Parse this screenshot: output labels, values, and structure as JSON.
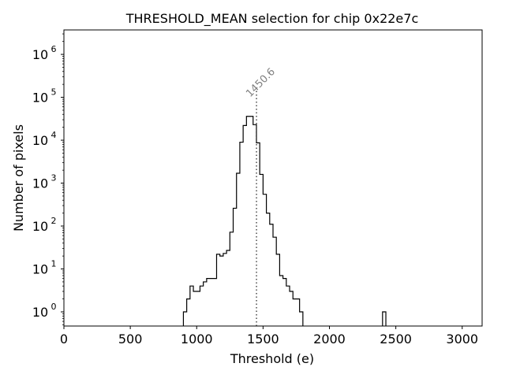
{
  "chart_data": {
    "type": "histogram",
    "title": "THRESHOLD_MEAN selection for chip 0x22e7c",
    "xlabel": "Threshold (e)",
    "ylabel": "Number of pixels",
    "xlim": [
      0,
      3150
    ],
    "ylim_log10": [
      -0.33,
      6.57
    ],
    "x_ticks": [
      0,
      500,
      1000,
      1500,
      2000,
      2500,
      3000
    ],
    "x_tick_labels": [
      "0",
      "500",
      "1000",
      "1500",
      "2000",
      "2500",
      "3000"
    ],
    "y_ticks_log10": [
      0,
      1,
      2,
      3,
      4,
      5,
      6
    ],
    "y_tick_labels": [
      "10",
      "10",
      "10",
      "10",
      "10",
      "10",
      "10"
    ],
    "y_tick_exponents": [
      "0",
      "1",
      "2",
      "3",
      "4",
      "5",
      "6"
    ],
    "bin_width": 25,
    "bins": [
      {
        "x": 900,
        "count": 1
      },
      {
        "x": 925,
        "count": 2
      },
      {
        "x": 950,
        "count": 4
      },
      {
        "x": 975,
        "count": 3
      },
      {
        "x": 1000,
        "count": 3
      },
      {
        "x": 1025,
        "count": 4
      },
      {
        "x": 1050,
        "count": 5
      },
      {
        "x": 1075,
        "count": 6
      },
      {
        "x": 1100,
        "count": 6
      },
      {
        "x": 1125,
        "count": 6
      },
      {
        "x": 1150,
        "count": 22
      },
      {
        "x": 1175,
        "count": 20
      },
      {
        "x": 1200,
        "count": 23
      },
      {
        "x": 1225,
        "count": 27
      },
      {
        "x": 1250,
        "count": 72
      },
      {
        "x": 1275,
        "count": 260
      },
      {
        "x": 1300,
        "count": 1700
      },
      {
        "x": 1325,
        "count": 9000
      },
      {
        "x": 1350,
        "count": 22000
      },
      {
        "x": 1375,
        "count": 36000
      },
      {
        "x": 1400,
        "count": 36000
      },
      {
        "x": 1425,
        "count": 23000
      },
      {
        "x": 1450,
        "count": 8700
      },
      {
        "x": 1475,
        "count": 1600
      },
      {
        "x": 1500,
        "count": 550
      },
      {
        "x": 1525,
        "count": 200
      },
      {
        "x": 1550,
        "count": 110
      },
      {
        "x": 1575,
        "count": 55
      },
      {
        "x": 1600,
        "count": 22
      },
      {
        "x": 1625,
        "count": 7
      },
      {
        "x": 1650,
        "count": 6
      },
      {
        "x": 1675,
        "count": 4
      },
      {
        "x": 1700,
        "count": 3
      },
      {
        "x": 1725,
        "count": 2
      },
      {
        "x": 1750,
        "count": 2
      },
      {
        "x": 1775,
        "count": 1
      },
      {
        "x": 2400,
        "count": 1
      }
    ],
    "hist_range": [
      900,
      1925
    ],
    "marker": {
      "x": 1450.6,
      "label": "1450.6",
      "line_top_log10": 5.18
    }
  }
}
